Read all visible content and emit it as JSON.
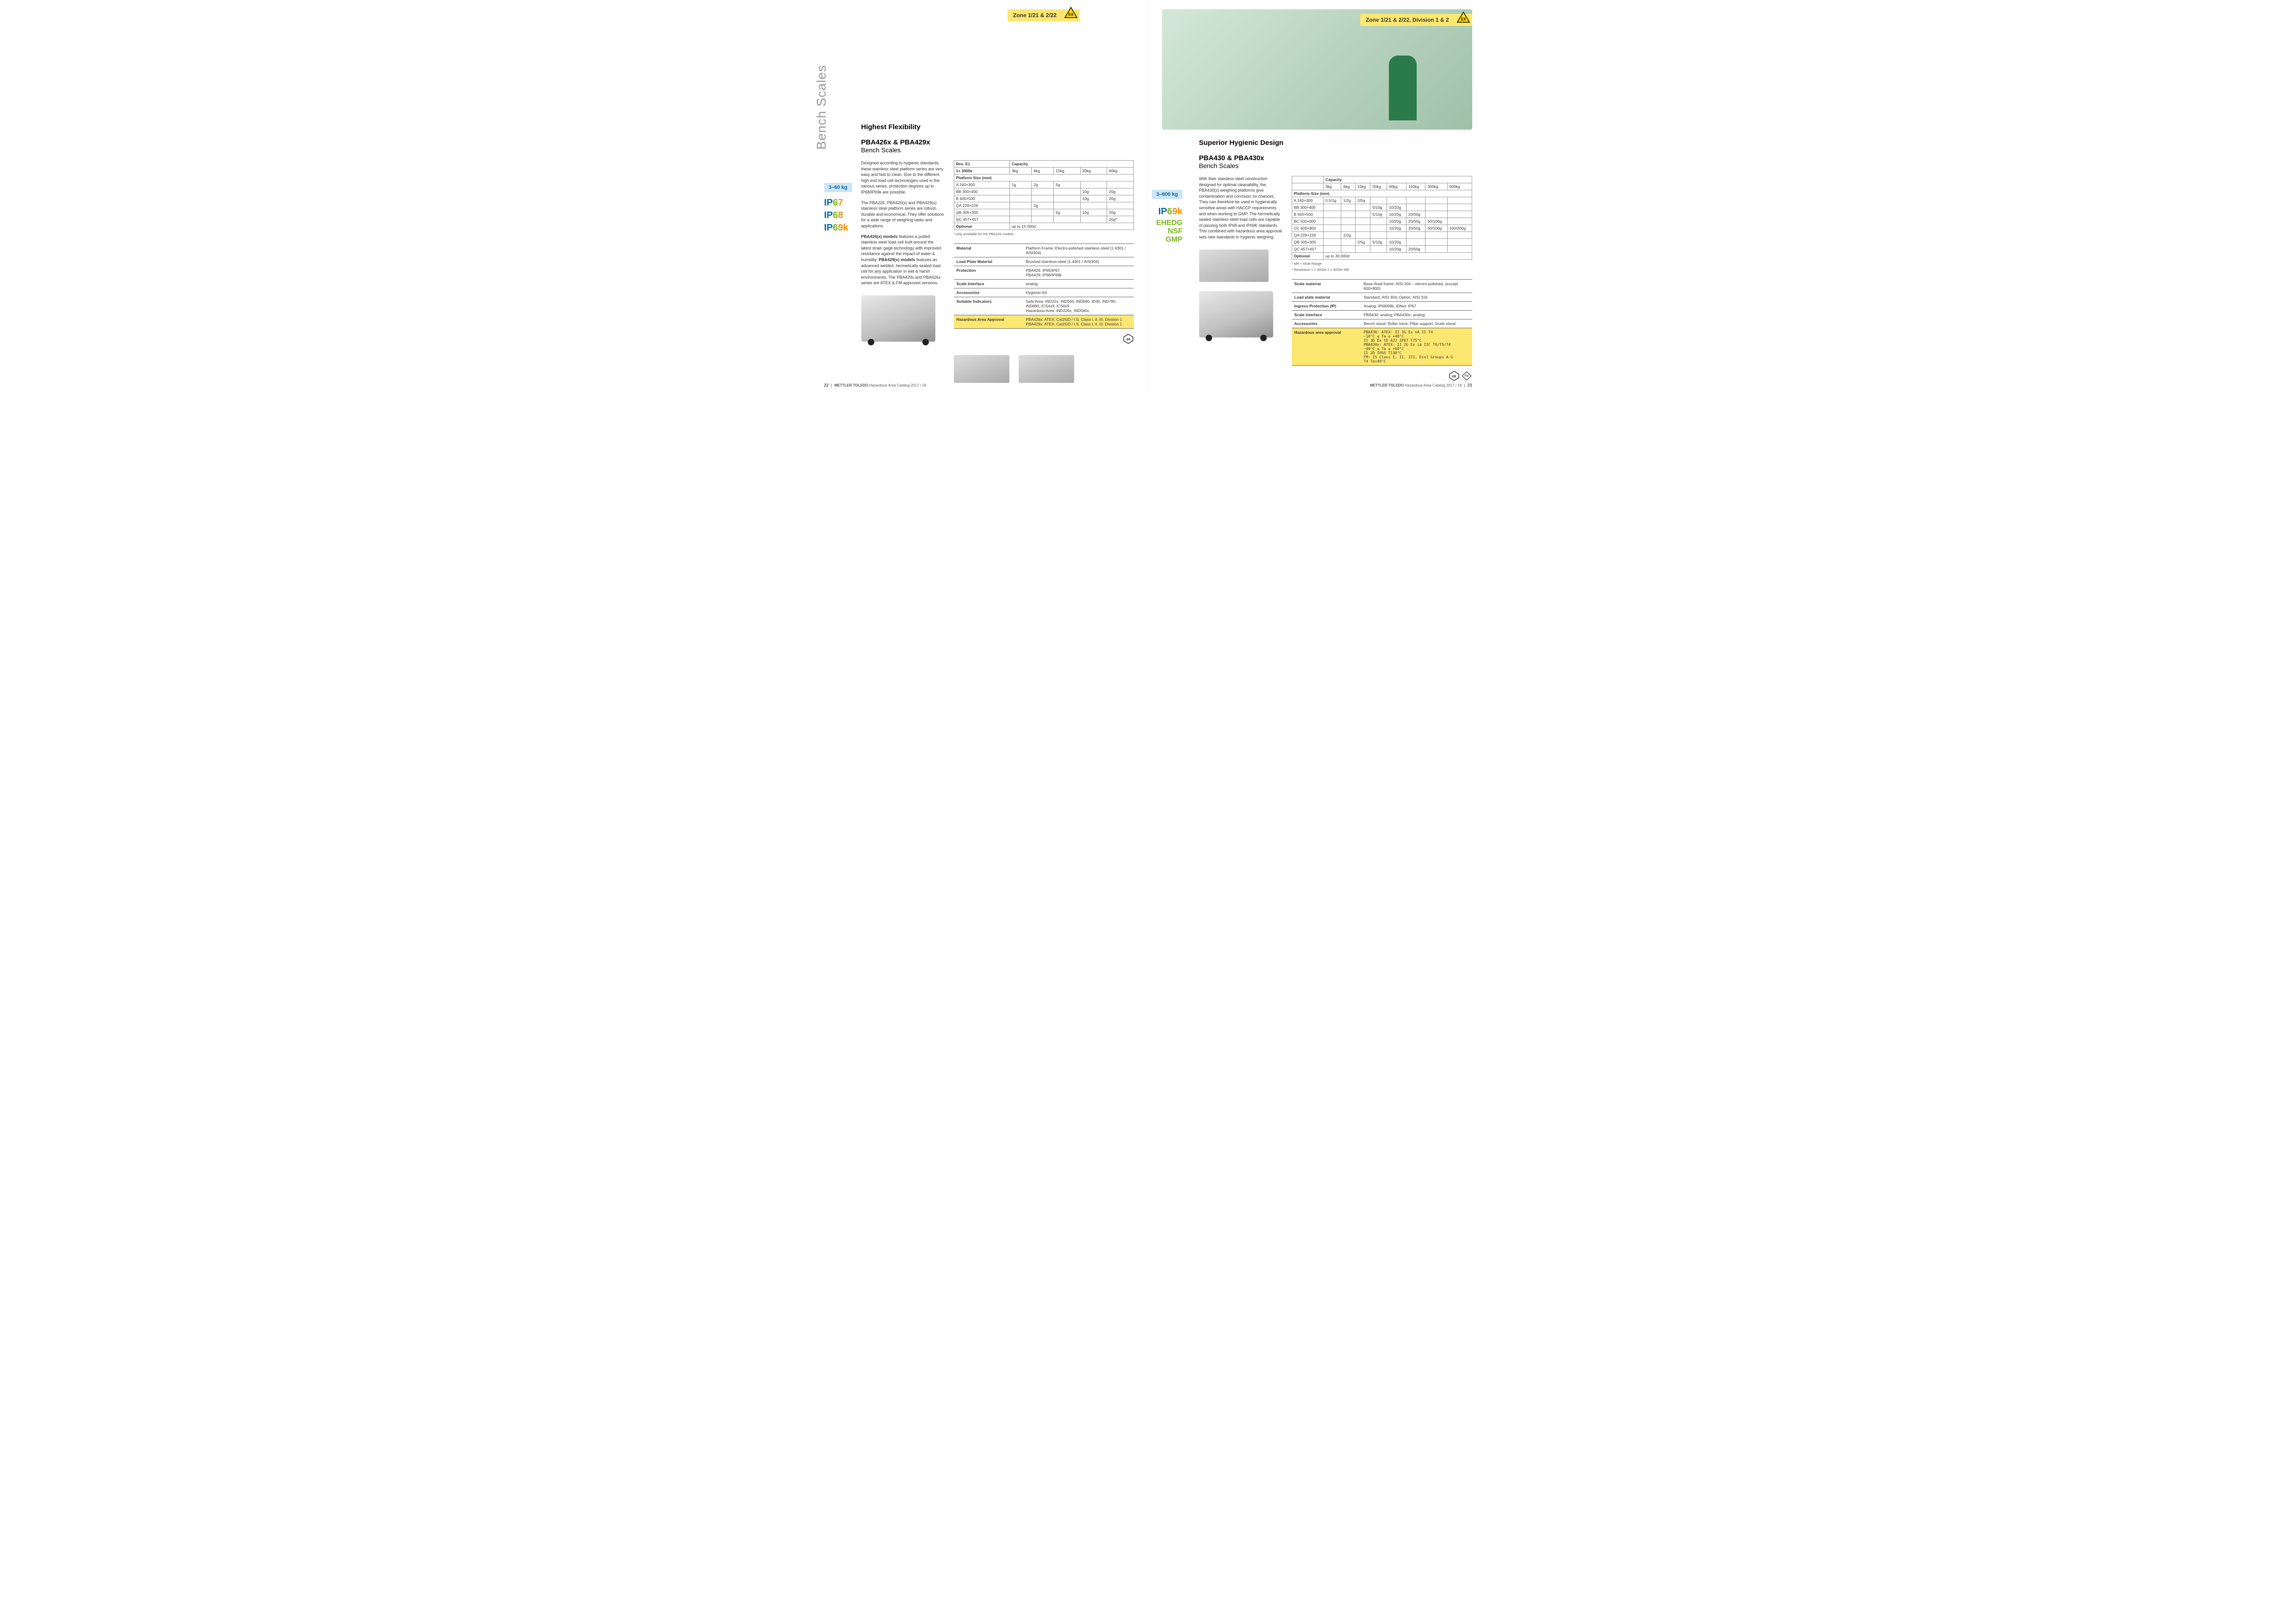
{
  "sideTab": "Bench Scales",
  "left": {
    "zone": "Zone 1/21 & 2/22",
    "heading": "Highest Flexibility",
    "productTitle": "PBA426x & PBA429x",
    "productSubtitle": "Bench Scales",
    "weightRange": "3–60 kg",
    "para1": "Designed according to hygienic standards, these stainless steel platform series are very easy and fast to clean. Due to the different high end load cell technologies used in the various series, protection degrees up to IP68/IP69k are possible.",
    "para2": "The PBA226, PBA426(x) and PBA429(x) stainless steel platform series are robust, durable and economical. They offer solutions for a wide range of weighing tasks and applications.",
    "para3a": "PBA426(x) models",
    "para3b": " features a potted stainless steel load cell built around the latest strain gage technology with improved resistance against the impact of water & humidity. ",
    "para3c": "PBA429(x) models",
    "para3d": " features an advanced welded, hermetically sealed load cell for any application in wet & harsh environments. The PBA429x and PBA426x series are ATEX & FM approved versions.",
    "ipBadges": [
      "IP67",
      "IP68",
      "IP69k"
    ],
    "specTable": {
      "resLabel": "Res. E1",
      "resValue": "1× 3000e",
      "capacityLabel": "Capacity",
      "capacities": [
        "3kg",
        "6kg",
        "15kg",
        "30kg",
        "60kg"
      ],
      "sizeLabel": "Platform Size (mm)",
      "rows": [
        {
          "size": "A  240×300",
          "cells": [
            "1g",
            "2g",
            "5g",
            "",
            ""
          ]
        },
        {
          "size": "BB 300×400",
          "cells": [
            "",
            "",
            "",
            "10g",
            "20g"
          ]
        },
        {
          "size": "B  400×500",
          "cells": [
            "",
            "",
            "",
            "10g",
            "20g"
          ]
        },
        {
          "size": "QA 229×229",
          "cells": [
            "",
            "2g",
            "",
            "",
            ""
          ]
        },
        {
          "size": "QB 305×305",
          "cells": [
            "",
            "",
            "5g",
            "10g",
            "20g"
          ]
        },
        {
          "size": "QC 457×457",
          "cells": [
            "",
            "",
            "",
            "",
            "20g*"
          ]
        }
      ],
      "optionalLabel": "Optional",
      "optionalValue": "up to 15 000d",
      "footnote": "* only available for the PBA226 models"
    },
    "details": [
      {
        "label": "Material",
        "value": "Platform Frame: Electro-polished stainless steel (1.4301 / AISI304)"
      },
      {
        "label": "Load Plate Material",
        "value": "Brushed stainless steel (1.4301 / AISI304)"
      },
      {
        "label": "Protection",
        "value": "PBA426: IP65/IP67\nPBA429: IP68/IP69k"
      },
      {
        "label": "Scale Interface",
        "value": "analog"
      },
      {
        "label": "Accessories",
        "value": "Hygienic-Kit"
      },
      {
        "label": "Suitable Indicators",
        "value": "Safe Area: IND22x, IND560, IND690, ID30, IND780, IND890, ICS4x9, ICS6x9\nHazardous Area: IND226x, IND560x"
      }
    ],
    "hazLabel": "Hazardous Area Approval",
    "hazValue": "PBA426x: ATEX: Cat2GD / I.S. Class I, II, III, Division 1\nPBA429x: ATEX: Cat2GD / I.S. Class I, II, III, Division 1"
  },
  "right": {
    "zone": "Zone 1/21 & 2/22, Division 1 & 2",
    "heading": "Superior Hygienic Design",
    "productTitle": "PBA430 & PBA430x",
    "productSubtitle": "Bench Scales",
    "weightRange": "3–600 kg",
    "para1": "With their stainless steel construction designed for optimal cleanability, the PBA430(x) weighing platforms give contamination and corrosion no chances. They can therefore be used in hygienically sensitive areas with HACCP requirements and when working to GMP. The hermetically sealed stainless steel load cells are capable of passing both IP68 and IP69K standards. This combined with hazardous area approval sets new standards in hygienic weighing.",
    "ipBadge": "IP69k",
    "certBadges": [
      "EHEDG",
      "NSF",
      "GMP"
    ],
    "specTable": {
      "capacityLabel": "Capacity",
      "capacities": [
        "3kg",
        "6kg",
        "15kg",
        "30kg",
        "60kg",
        "150kg",
        "300kg",
        "600kg"
      ],
      "sizeLabel": "Platform Size (mm)",
      "rows": [
        {
          "size": "A  240×300",
          "cells": [
            "0.5/1g",
            "1/2g",
            "2/5g",
            "",
            "",
            "",
            "",
            ""
          ]
        },
        {
          "size": "BB 300×400",
          "cells": [
            "",
            "",
            "",
            "5/10g",
            "10/20g",
            "",
            "",
            ""
          ]
        },
        {
          "size": "B  400×500",
          "cells": [
            "",
            "",
            "",
            "5/10g",
            "10/20g",
            "20/50g",
            "",
            ""
          ]
        },
        {
          "size": "BC 500×600",
          "cells": [
            "",
            "",
            "",
            "",
            "10/20g",
            "20/50g",
            "50/100g",
            ""
          ]
        },
        {
          "size": "CC 600×800",
          "cells": [
            "",
            "",
            "",
            "",
            "10/20g",
            "20/50g",
            "50/100g",
            "100/200g"
          ]
        },
        {
          "size": "QA 229×229",
          "cells": [
            "",
            "1/2g",
            "",
            "",
            "",
            "",
            "",
            ""
          ]
        },
        {
          "size": "QB 305×305",
          "cells": [
            "",
            "",
            "2/5g",
            "5/10g",
            "10/20g",
            "",
            "",
            ""
          ]
        },
        {
          "size": "QC 457×457",
          "cells": [
            "",
            "",
            "",
            "",
            "10/20g",
            "20/50g",
            "",
            ""
          ]
        }
      ],
      "optionalLabel": "Optional",
      "optionalValue": "up to 30,000d",
      "footnote1": "* MR = Multi Range",
      "footnote2": "* Resolution 1 x 3000e 2 x 3000e MR"
    },
    "details": [
      {
        "label": "Scale material",
        "value": "Base-/load frame: AISI 304 – electro-polished, (except 600×800)"
      },
      {
        "label": "Load plate material",
        "value": "Standard: AISI 304; Option: AISI 316"
      },
      {
        "label": "Ingress Protection (IP)",
        "value": "Analog: IP68/69k; IDNet: IP67"
      },
      {
        "label": "Scale interface",
        "value": "PBA430: analog; PBA430x: analog"
      },
      {
        "label": "Accessories",
        "value": "Bench stand; Roller track; Pillar support; Scale stand"
      }
    ],
    "hazLabel": "Hazardous area approval",
    "hazValue": "PBA430:   ATEX:  II 3G Ex nA II T4\n                  –10°C ≤ Ta ≤ +40°C\n                  II 3D Ex tD A22 IP67 T75°C\nPBA430x:  ATEX:  II 2G Ex ia IIC T6/T5/T4\n                  –40°C ≤ Ta ≤ +60°C\n                  II 2D IP65 T130°C\n          FM:    IS Class I, II, III, Div1 Groups A-G\n                  T4 Ta=40°C"
  },
  "footer": {
    "brand": "METTLER TOLEDO",
    "catalog": "Hazardous Area Catalog 2017 / 18",
    "pageLeft": "22",
    "pageRight": "23"
  }
}
